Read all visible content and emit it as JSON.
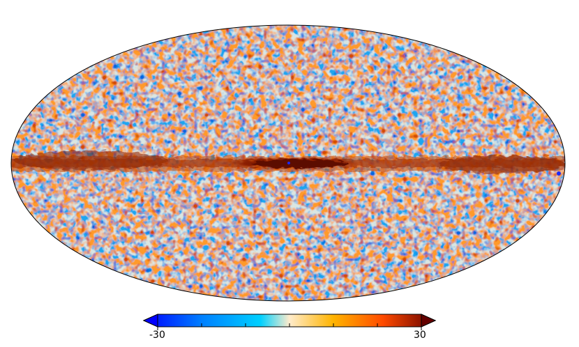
{
  "image": {
    "description_kind": "all-sky Mollweide projection map",
    "colormap": [
      "#0000ff",
      "#0080ff",
      "#00c8ff",
      "#ffeccc",
      "#ffb400",
      "#ff4b00",
      "#640000"
    ],
    "band_color": "#7a1a00",
    "outline_color": "#000000"
  },
  "colorbar": {
    "min_label": "-30",
    "max_label": "30",
    "min_value": -30,
    "max_value": 30
  }
}
